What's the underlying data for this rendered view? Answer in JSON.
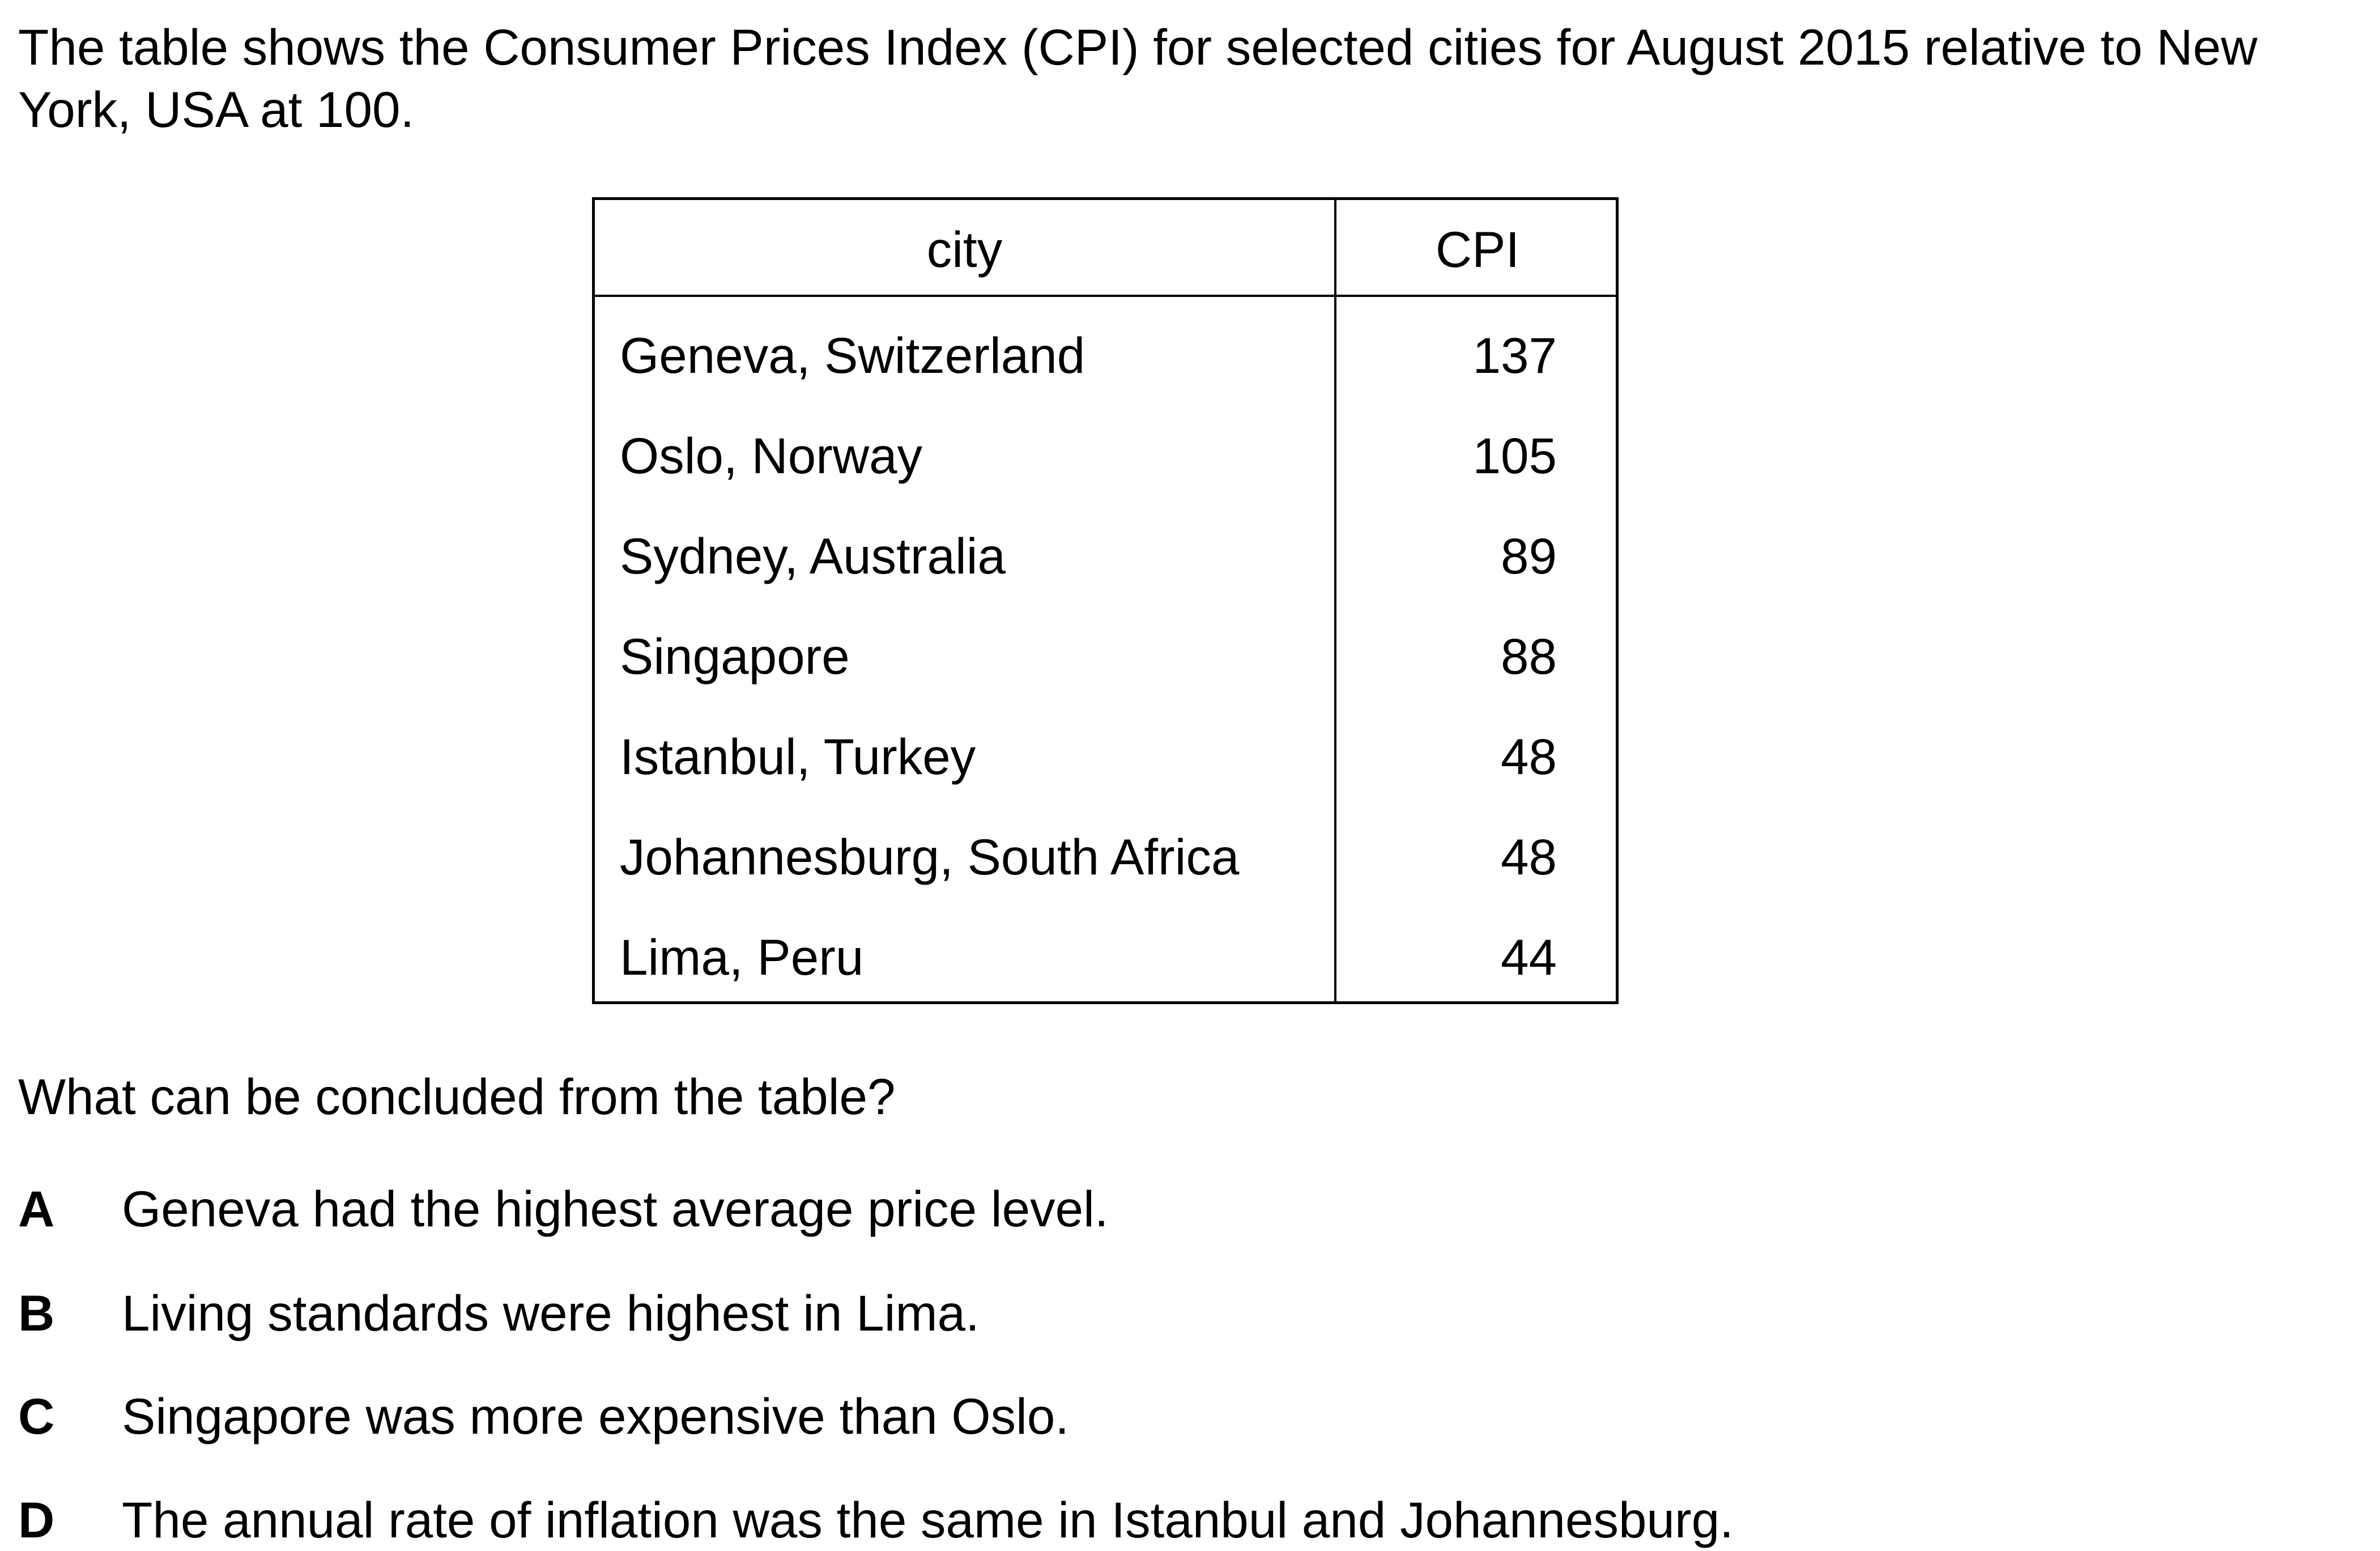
{
  "intro_text": "The table shows the Consumer Prices Index (CPI) for selected cities for August 2015 relative to New York, USA at 100.",
  "table": {
    "headers": {
      "city": "city",
      "cpi": "CPI"
    },
    "rows": [
      {
        "city": "Geneva, Switzerland",
        "cpi": "137"
      },
      {
        "city": "Oslo, Norway",
        "cpi": "105"
      },
      {
        "city": "Sydney, Australia",
        "cpi": "89"
      },
      {
        "city": "Singapore",
        "cpi": "88"
      },
      {
        "city": "Istanbul, Turkey",
        "cpi": "48"
      },
      {
        "city": "Johannesburg, South Africa",
        "cpi": "48"
      },
      {
        "city": "Lima, Peru",
        "cpi": "44"
      }
    ]
  },
  "question": "What can be concluded from the table?",
  "options": [
    {
      "letter": "A",
      "text": "Geneva had the highest average price level."
    },
    {
      "letter": "B",
      "text": "Living standards were highest in Lima."
    },
    {
      "letter": "C",
      "text": "Singapore was more expensive than Oslo."
    },
    {
      "letter": "D",
      "text": "The annual rate of inflation was the same in Istanbul and Johannesburg."
    }
  ]
}
